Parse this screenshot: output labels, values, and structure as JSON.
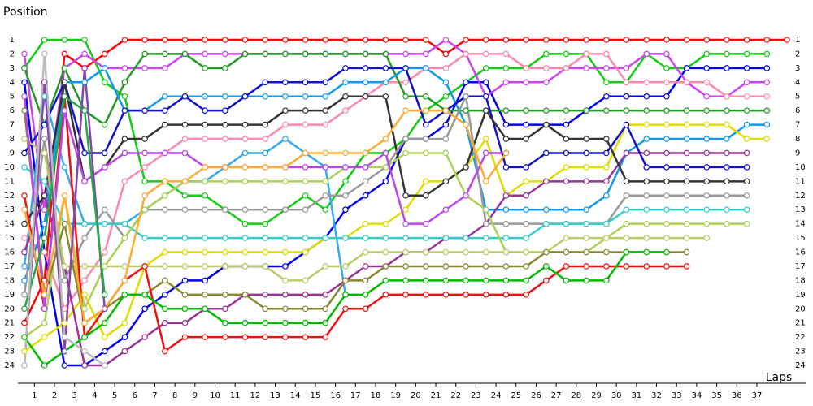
{
  "chart_data": {
    "type": "line",
    "ylabel": "Position",
    "xlabel": "Laps",
    "x": [
      0,
      1,
      2,
      3,
      4,
      5,
      6,
      7,
      8,
      9,
      10,
      11,
      12,
      13,
      14,
      15,
      16,
      17,
      18,
      19,
      20,
      21,
      22,
      23,
      24,
      25,
      26,
      27,
      28,
      29,
      30,
      31,
      32,
      33,
      34,
      35,
      36,
      37,
      38
    ],
    "xlim": [
      0,
      38
    ],
    "ylim": [
      1,
      24
    ],
    "y_inverted": true,
    "xticks": [
      {
        "value": 0.5,
        "label": "1"
      },
      {
        "value": 1.5,
        "label": "2"
      },
      {
        "value": 2.5,
        "label": "3"
      },
      {
        "value": 3.5,
        "label": "4"
      },
      {
        "value": 4.5,
        "label": "5"
      },
      {
        "value": 5.5,
        "label": "6"
      },
      {
        "value": 6.5,
        "label": "7"
      },
      {
        "value": 7.5,
        "label": "8"
      },
      {
        "value": 8.5,
        "label": "9"
      },
      {
        "value": 9.5,
        "label": "10"
      },
      {
        "value": 10.5,
        "label": "11"
      },
      {
        "value": 11.5,
        "label": "12"
      },
      {
        "value": 12.5,
        "label": "13"
      },
      {
        "value": 13.5,
        "label": "14"
      },
      {
        "value": 14.5,
        "label": "15"
      },
      {
        "value": 15.5,
        "label": "16"
      },
      {
        "value": 16.5,
        "label": "17"
      },
      {
        "value": 17.5,
        "label": "18"
      },
      {
        "value": 18.5,
        "label": "19"
      },
      {
        "value": 19.5,
        "label": "20"
      },
      {
        "value": 20.5,
        "label": "21"
      },
      {
        "value": 21.5,
        "label": "22"
      },
      {
        "value": 22.5,
        "label": "23"
      },
      {
        "value": 23.5,
        "label": "24"
      },
      {
        "value": 24.5,
        "label": "25"
      },
      {
        "value": 25.5,
        "label": "26"
      },
      {
        "value": 26.5,
        "label": "27"
      },
      {
        "value": 27.5,
        "label": "28"
      },
      {
        "value": 28.5,
        "label": "29"
      },
      {
        "value": 29.5,
        "label": "30"
      },
      {
        "value": 30.5,
        "label": "31"
      },
      {
        "value": 31.5,
        "label": "32"
      },
      {
        "value": 32.5,
        "label": "33"
      },
      {
        "value": 33.5,
        "label": "34"
      },
      {
        "value": 34.5,
        "label": "35"
      },
      {
        "value": 35.5,
        "label": "36"
      },
      {
        "value": 36.5,
        "label": "37"
      }
    ],
    "yticks": [
      1,
      2,
      3,
      4,
      5,
      6,
      7,
      8,
      9,
      10,
      11,
      12,
      13,
      14,
      15,
      16,
      17,
      18,
      19,
      20,
      21,
      22,
      23,
      24
    ],
    "series": [
      {
        "color": "#ff0000",
        "values": [
          21,
          18,
          2,
          3,
          2,
          1,
          1,
          1,
          1,
          1,
          1,
          1,
          1,
          1,
          1,
          1,
          1,
          1,
          1,
          1,
          1,
          2,
          1,
          1,
          1,
          1,
          1,
          1,
          1,
          1,
          1,
          1,
          1,
          1,
          1,
          1,
          1,
          1,
          1
        ]
      },
      {
        "color": "#11cc11",
        "values": [
          3,
          1,
          1,
          1,
          4,
          5,
          11,
          11,
          12,
          12,
          13,
          14,
          14,
          13,
          12,
          13,
          11,
          9,
          9,
          8,
          6,
          5,
          4,
          3,
          3,
          3,
          2,
          2,
          2,
          4,
          4,
          2,
          3,
          3,
          2,
          2,
          2,
          2,
          null
        ]
      },
      {
        "color": "#0000ee",
        "values": [
          4,
          16,
          24,
          24,
          23,
          22,
          20,
          19,
          18,
          18,
          17,
          17,
          17,
          17,
          16,
          15,
          13,
          12,
          11,
          8,
          8,
          7,
          4,
          4,
          7,
          7,
          7,
          7,
          6,
          5,
          5,
          5,
          5,
          3,
          3,
          3,
          3,
          3,
          null
        ]
      },
      {
        "color": "#cc44ee",
        "values": [
          2,
          13,
          3,
          2,
          3,
          3,
          3,
          3,
          2,
          2,
          2,
          2,
          2,
          2,
          2,
          2,
          2,
          2,
          2,
          2,
          2,
          1,
          2,
          5,
          4,
          4,
          4,
          3,
          3,
          3,
          3,
          2,
          2,
          4,
          5,
          5,
          4,
          4,
          null
        ]
      },
      {
        "color": "#ff88aa",
        "values": [
          15,
          16,
          20,
          18,
          16,
          11,
          10,
          9,
          8,
          8,
          8,
          8,
          8,
          7,
          7,
          7,
          6,
          5,
          4,
          4,
          3,
          3,
          2,
          2,
          2,
          3,
          3,
          3,
          2,
          2,
          4,
          4,
          4,
          4,
          4,
          5,
          5,
          5,
          null
        ]
      },
      {
        "color": "#229922",
        "values": [
          3,
          7,
          3,
          6,
          7,
          4,
          2,
          2,
          2,
          3,
          3,
          2,
          2,
          2,
          2,
          2,
          2,
          2,
          2,
          5,
          5,
          6,
          6,
          6,
          6,
          6,
          6,
          6,
          6,
          6,
          6,
          6,
          6,
          6,
          6,
          6,
          6,
          6,
          null
        ]
      },
      {
        "color": "#1199ee",
        "values": [
          18,
          14,
          4,
          4,
          3,
          6,
          6,
          5,
          5,
          5,
          5,
          5,
          5,
          5,
          5,
          5,
          4,
          4,
          4,
          3,
          3,
          4,
          7,
          13,
          13,
          13,
          13,
          13,
          13,
          12,
          9,
          8,
          8,
          8,
          8,
          8,
          7,
          7,
          null
        ]
      },
      {
        "color": "#33aaee",
        "values": [
          17,
          5,
          10,
          14,
          14,
          14,
          13,
          12,
          11,
          11,
          10,
          9,
          9,
          8,
          9,
          10,
          19,
          null,
          null,
          null,
          null,
          null,
          null,
          null,
          null,
          null,
          null,
          null,
          null,
          null,
          null,
          null,
          null,
          null,
          null,
          null,
          null,
          null,
          null
        ]
      },
      {
        "color": "#dddd00",
        "values": [
          23,
          22,
          21,
          19,
          22,
          21,
          17,
          16,
          16,
          16,
          16,
          16,
          16,
          16,
          16,
          15,
          15,
          14,
          14,
          13,
          11,
          11,
          10,
          8,
          12,
          11,
          11,
          10,
          10,
          10,
          7,
          7,
          7,
          7,
          7,
          7,
          8,
          8,
          null
        ]
      },
      {
        "color": "#993399",
        "values": [
          16,
          12,
          17,
          24,
          24,
          23,
          22,
          21,
          21,
          20,
          20,
          19,
          19,
          19,
          19,
          19,
          18,
          17,
          17,
          16,
          16,
          15,
          15,
          14,
          12,
          12,
          11,
          11,
          11,
          11,
          9,
          9,
          9,
          9,
          9,
          9,
          9,
          null,
          null
        ]
      },
      {
        "color": "#1111cc",
        "values": [
          9,
          7,
          4,
          9,
          9,
          6,
          6,
          6,
          5,
          6,
          6,
          5,
          4,
          4,
          4,
          4,
          3,
          3,
          3,
          3,
          7,
          6,
          5,
          5,
          10,
          10,
          9,
          9,
          9,
          9,
          7,
          10,
          10,
          10,
          10,
          10,
          10,
          null,
          null
        ]
      },
      {
        "color": "#333333",
        "values": [
          14,
          12,
          4,
          11,
          10,
          8,
          8,
          7,
          7,
          7,
          7,
          7,
          7,
          6,
          6,
          6,
          5,
          5,
          5,
          12,
          12,
          11,
          10,
          6,
          8,
          8,
          7,
          8,
          8,
          8,
          11,
          11,
          11,
          11,
          11,
          11,
          11,
          null,
          null
        ]
      },
      {
        "color": "#999999",
        "values": [
          19,
          8,
          18,
          15,
          13,
          15,
          13,
          13,
          13,
          13,
          13,
          13,
          13,
          13,
          13,
          12,
          12,
          11,
          10,
          8,
          8,
          8,
          5,
          14,
          14,
          14,
          14,
          14,
          14,
          14,
          12,
          12,
          12,
          12,
          12,
          12,
          12,
          null,
          null
        ]
      },
      {
        "color": "#33cccc",
        "values": [
          10,
          11,
          14,
          14,
          14,
          14,
          15,
          15,
          15,
          15,
          15,
          15,
          15,
          15,
          15,
          15,
          15,
          15,
          15,
          15,
          15,
          15,
          15,
          15,
          15,
          15,
          14,
          14,
          14,
          14,
          13,
          13,
          13,
          13,
          13,
          13,
          13,
          null,
          null
        ]
      },
      {
        "color": "#aad055",
        "values": [
          22,
          21,
          12,
          20,
          17,
          15,
          13,
          12,
          11,
          11,
          11,
          11,
          11,
          11,
          11,
          11,
          10,
          10,
          10,
          9,
          9,
          9,
          12,
          13,
          16,
          16,
          16,
          16,
          16,
          15,
          14,
          14,
          14,
          14,
          14,
          14,
          14,
          null,
          null
        ]
      },
      {
        "color": "#bbcc66",
        "values": [
          8,
          9,
          17,
          17,
          17,
          17,
          17,
          17,
          17,
          17,
          17,
          17,
          17,
          18,
          18,
          17,
          17,
          16,
          16,
          16,
          16,
          16,
          16,
          16,
          16,
          16,
          16,
          15,
          15,
          15,
          15,
          15,
          15,
          15,
          15,
          null,
          null,
          null,
          null
        ]
      },
      {
        "color": "#888833",
        "values": [
          6,
          19,
          14,
          21,
          20,
          19,
          19,
          18,
          19,
          19,
          19,
          19,
          20,
          20,
          20,
          20,
          18,
          18,
          17,
          17,
          17,
          17,
          17,
          17,
          17,
          17,
          16,
          16,
          16,
          16,
          16,
          16,
          16,
          16,
          null,
          null,
          null,
          null,
          null
        ]
      },
      {
        "color": "#ee1111",
        "values": [
          12,
          20,
          5,
          22,
          20,
          18,
          17,
          23,
          22,
          22,
          22,
          22,
          22,
          22,
          22,
          22,
          20,
          20,
          19,
          19,
          19,
          19,
          19,
          19,
          19,
          19,
          18,
          17,
          17,
          17,
          17,
          17,
          17,
          17,
          null,
          null,
          null,
          null,
          null
        ]
      },
      {
        "color": "#00bb00",
        "values": [
          22,
          24,
          23,
          22,
          21,
          19,
          19,
          20,
          20,
          20,
          21,
          21,
          21,
          21,
          21,
          21,
          19,
          19,
          18,
          18,
          18,
          18,
          18,
          18,
          18,
          18,
          17,
          18,
          18,
          18,
          16,
          16,
          16,
          null,
          null,
          null,
          null,
          null,
          null
        ]
      },
      {
        "color": "#bb44ee",
        "values": [
          5,
          20,
          6,
          11,
          10,
          9,
          9,
          9,
          9,
          10,
          10,
          10,
          10,
          10,
          10,
          10,
          10,
          10,
          9,
          14,
          14,
          13,
          12,
          9,
          9,
          null,
          null,
          null,
          null,
          null,
          null,
          null,
          null,
          null,
          null,
          null,
          null,
          null,
          null
        ]
      },
      {
        "color": "#ffaa33",
        "values": [
          13,
          19,
          12,
          21,
          20,
          18,
          12,
          11,
          11,
          10,
          10,
          10,
          10,
          10,
          9,
          9,
          9,
          9,
          8,
          6,
          6,
          6,
          7,
          11,
          9,
          null,
          null,
          null,
          null,
          null,
          null,
          null,
          null,
          null,
          null,
          null,
          null,
          null,
          null
        ]
      },
      {
        "color": "#8844aa",
        "values": [
          24,
          4,
          23,
          3,
          20,
          null,
          null,
          null,
          null,
          null,
          null,
          null,
          null,
          null,
          null,
          null,
          null,
          null,
          null,
          null,
          null,
          null,
          null,
          null,
          null,
          null,
          null,
          null,
          null,
          null,
          null,
          null,
          null,
          null,
          null,
          null,
          null,
          null,
          null
        ]
      },
      {
        "color": "#22aa44",
        "values": [
          20,
          15,
          5,
          6,
          19,
          null,
          null,
          null,
          null,
          null,
          null,
          null,
          null,
          null,
          null,
          null,
          null,
          null,
          null,
          null,
          null,
          null,
          null,
          null,
          null,
          null,
          null,
          null,
          null,
          null,
          null,
          null,
          null,
          null,
          null,
          null,
          null,
          null,
          null
        ]
      },
      {
        "color": "#bbbbbb",
        "values": [
          24,
          2,
          22,
          23,
          24,
          null,
          null,
          null,
          null,
          null,
          null,
          null,
          null,
          null,
          null,
          null,
          null,
          null,
          null,
          null,
          null,
          null,
          null,
          null,
          null,
          null,
          null,
          null,
          null,
          null,
          null,
          null,
          null,
          null,
          null,
          null,
          null,
          null,
          null
        ]
      }
    ]
  }
}
